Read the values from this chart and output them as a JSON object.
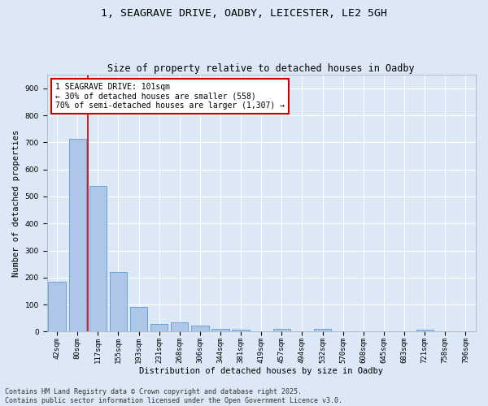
{
  "title_line1": "1, SEAGRAVE DRIVE, OADBY, LEICESTER, LE2 5GH",
  "title_line2": "Size of property relative to detached houses in Oadby",
  "xlabel": "Distribution of detached houses by size in Oadby",
  "ylabel": "Number of detached properties",
  "bar_labels": [
    "42sqm",
    "80sqm",
    "117sqm",
    "155sqm",
    "193sqm",
    "231sqm",
    "268sqm",
    "306sqm",
    "344sqm",
    "381sqm",
    "419sqm",
    "457sqm",
    "494sqm",
    "532sqm",
    "570sqm",
    "608sqm",
    "645sqm",
    "683sqm",
    "721sqm",
    "758sqm",
    "796sqm"
  ],
  "bar_values": [
    185,
    712,
    540,
    220,
    90,
    28,
    35,
    22,
    10,
    7,
    2,
    10,
    2,
    10,
    0,
    0,
    0,
    0,
    7,
    0,
    0
  ],
  "bar_color": "#aec6e8",
  "bar_edge_color": "#5b9bd5",
  "vline_x": 1.5,
  "vline_color": "#cc0000",
  "annotation_text": "1 SEAGRAVE DRIVE: 101sqm\n← 30% of detached houses are smaller (558)\n70% of semi-detached houses are larger (1,307) →",
  "annotation_box_edgecolor": "#cc0000",
  "annotation_box_facecolor": "#ffffff",
  "ylim": [
    0,
    950
  ],
  "yticks": [
    0,
    100,
    200,
    300,
    400,
    500,
    600,
    700,
    800,
    900
  ],
  "background_color": "#dce8f5",
  "grid_color": "#ffffff",
  "fig_facecolor": "#dce8f5",
  "footer": "Contains HM Land Registry data © Crown copyright and database right 2025.\nContains public sector information licensed under the Open Government Licence v3.0.",
  "title_fontsize": 9.5,
  "subtitle_fontsize": 8.5,
  "label_fontsize": 7.5,
  "tick_fontsize": 6.5,
  "annotation_fontsize": 7,
  "footer_fontsize": 6
}
